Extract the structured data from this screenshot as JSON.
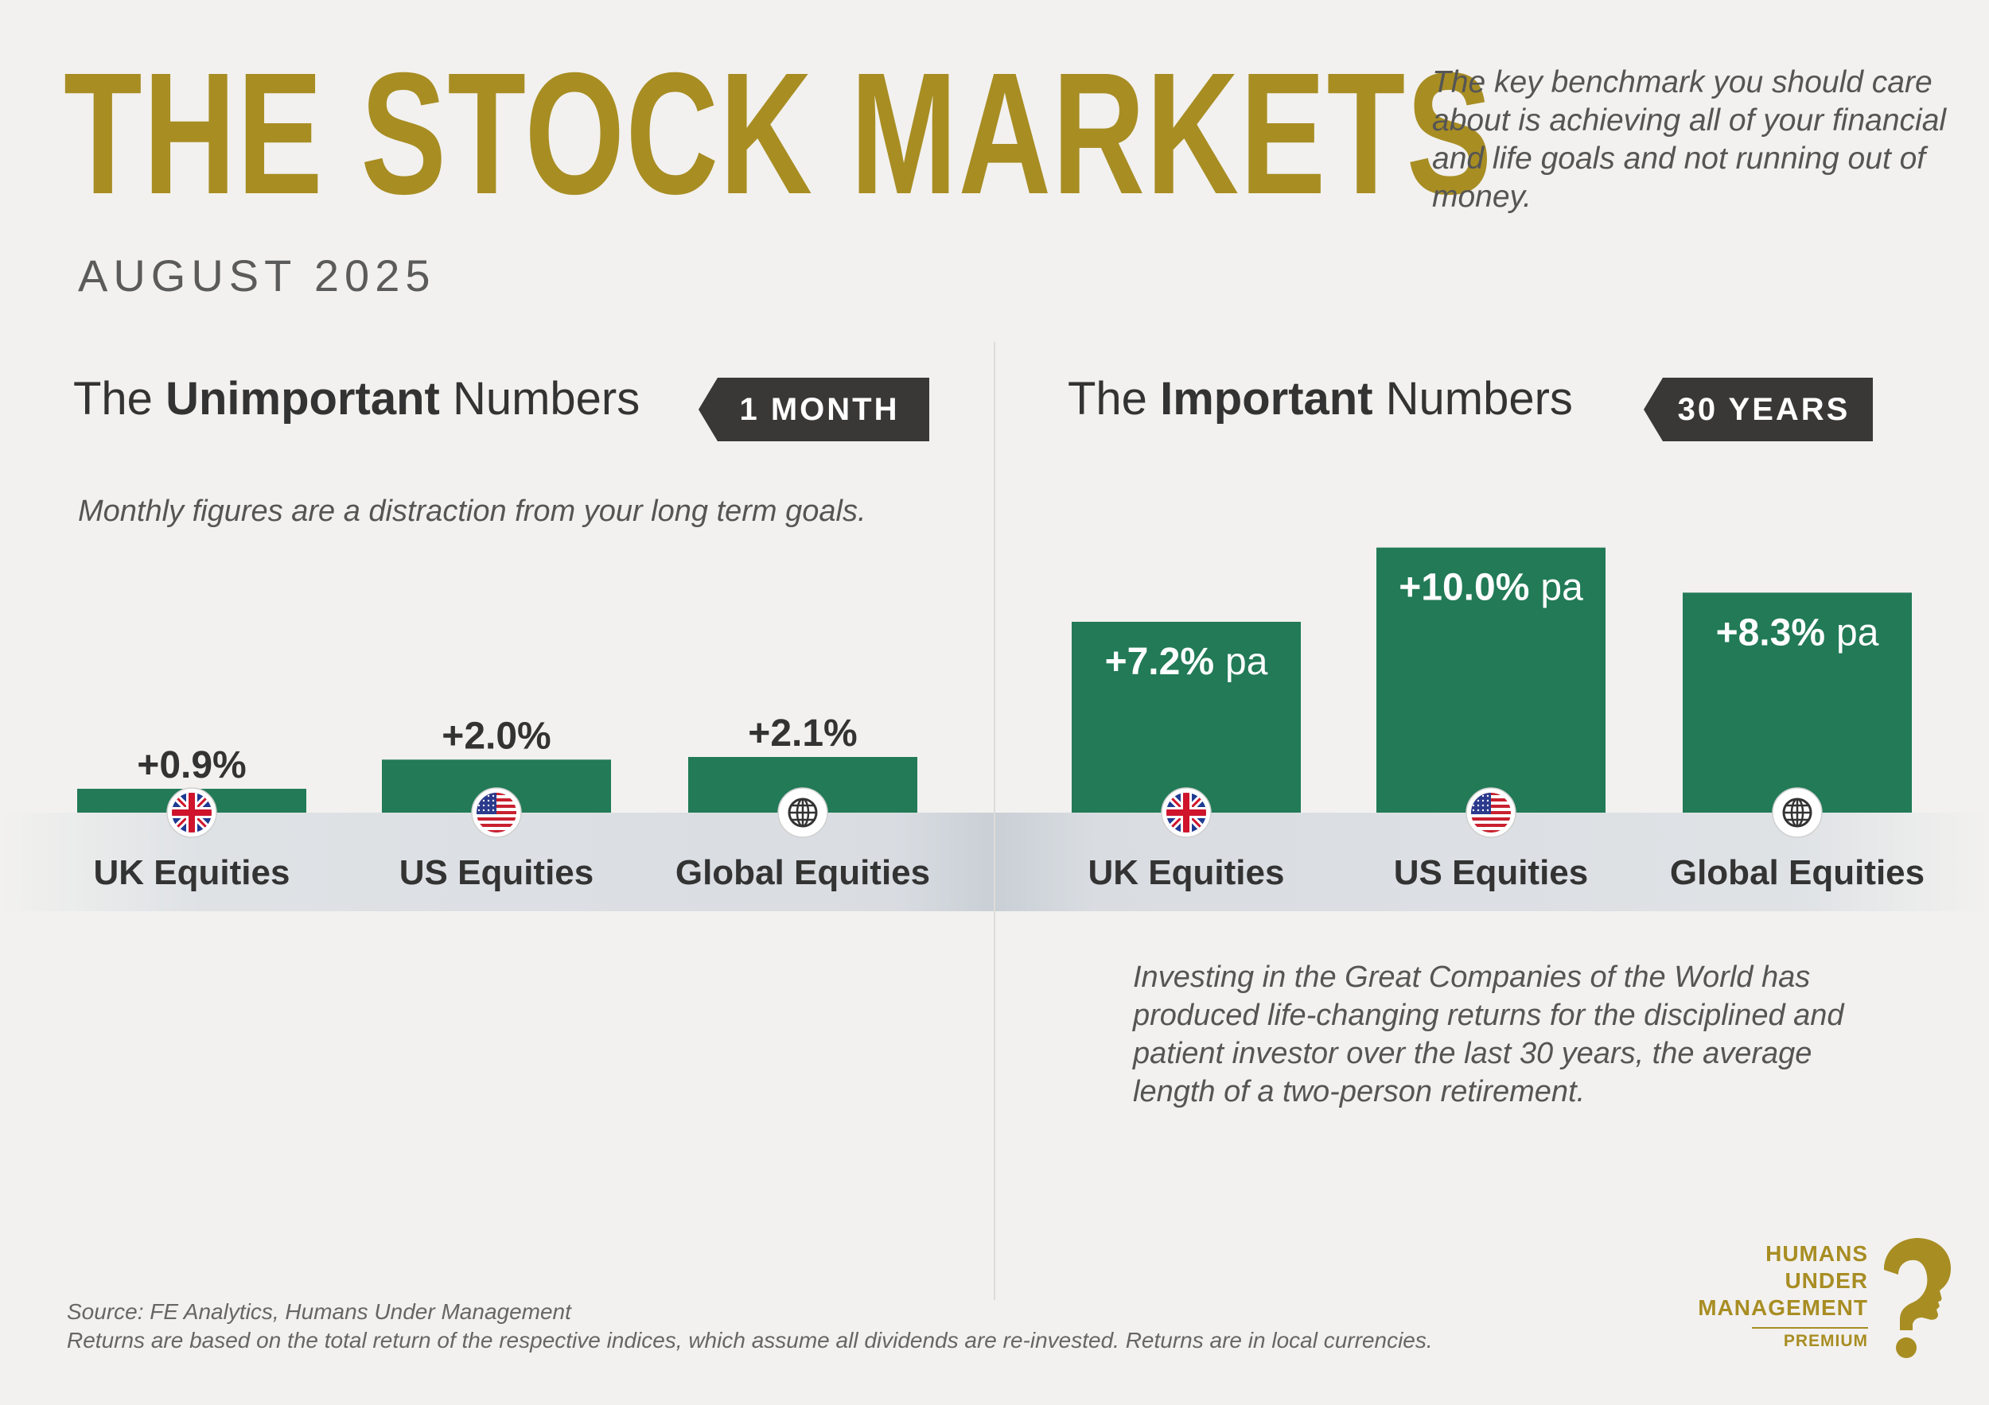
{
  "header": {
    "title": "THE STOCK MARKETS",
    "subtitle": "AUGUST 2025",
    "intro": "The key benchmark you should care about is achieving all of your financial and life goals and not running out of money."
  },
  "left_panel": {
    "heading_prefix": "The",
    "heading_emphasis": "Unimportant",
    "heading_suffix": "Numbers",
    "tag": "1 MONTH",
    "note": "Monthly figures are a distraction from your long term goals."
  },
  "right_panel": {
    "heading_prefix": "The",
    "heading_emphasis": "Important",
    "heading_suffix": "Numbers",
    "tag": "30 YEARS",
    "note": "Investing in the Great Companies of the World has produced life-changing returns for the disciplined and patient investor over the last 30 years, the average length of a two-person retirement."
  },
  "chart_data": [
    {
      "type": "bar",
      "categories": [
        "UK Equities",
        "US Equities",
        "Global Equities"
      ],
      "category_icons": [
        "uk-flag-icon",
        "us-flag-icon",
        "globe-icon"
      ],
      "values": [
        0.9,
        2.0,
        2.1
      ],
      "value_labels": [
        "+0.9%",
        "+2.0%",
        "+2.1%"
      ],
      "value_suffix": "",
      "label_position": "above",
      "title": "",
      "xlabel": "",
      "ylabel": "",
      "ylim": [
        0,
        12
      ],
      "grid": false,
      "color": "#227a57"
    },
    {
      "type": "bar",
      "categories": [
        "UK Equities",
        "US Equities",
        "Global Equities"
      ],
      "category_icons": [
        "uk-flag-icon",
        "us-flag-icon",
        "globe-icon"
      ],
      "values": [
        7.2,
        10.0,
        8.3
      ],
      "value_labels": [
        "+7.2%",
        "+10.0%",
        "+8.3%"
      ],
      "value_suffix": "pa",
      "label_position": "inside",
      "title": "",
      "xlabel": "",
      "ylabel": "",
      "ylim": [
        0,
        12
      ],
      "grid": false,
      "color": "#227a57"
    }
  ],
  "footer": {
    "source": "Source: FE Analytics, Humans Under Management",
    "disclaimer": "Returns are based on the total return of the respective indices, which assume all dividends are re-invested. Returns are in local currencies."
  },
  "logo": {
    "line1": "HUMANS",
    "line2": "UNDER",
    "line3": "MANAGEMENT",
    "badge": "PREMIUM"
  },
  "colors": {
    "gold": "#a88d23",
    "bar_green": "#227a57",
    "tag_dark": "#3a3837",
    "background": "#f2f1ef"
  }
}
